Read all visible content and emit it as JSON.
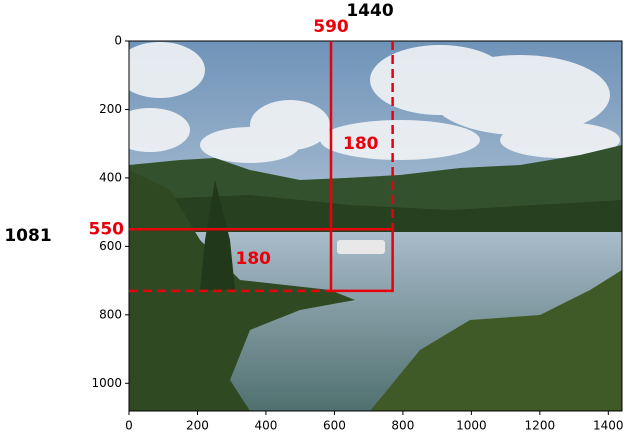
{
  "chart_data": {
    "type": "image",
    "xlim": [
      0,
      1440
    ],
    "ylim": [
      1081,
      0
    ],
    "xticks": [
      0,
      200,
      400,
      600,
      800,
      1000,
      1200,
      1400
    ],
    "yticks": [
      0,
      200,
      400,
      600,
      800,
      1000
    ],
    "image_width": 1440,
    "image_height": 1081,
    "box_x": 590,
    "box_y": 550,
    "box_width": 180,
    "box_height": 180,
    "color": "#e8000b"
  }
}
